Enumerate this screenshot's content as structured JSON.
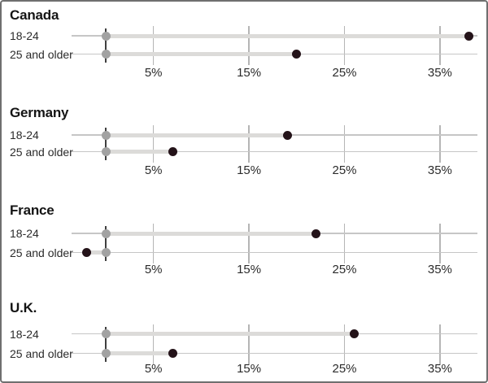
{
  "chart_data": {
    "type": "dumbbell",
    "description": "Four small-multiple lollipop/dumbbell panels by country; each panel compares two age groups, with a gray baseline dot at 0% connected by a light band to a dark dot at the value.",
    "unit": "%",
    "baseline_value": 0,
    "x_axis": {
      "tick_values": [
        5,
        15,
        25,
        35
      ],
      "tick_labels": [
        "5%",
        "15%",
        "25%",
        "35%"
      ],
      "range": [
        -3.6,
        39
      ],
      "gridlines": true
    },
    "group_labels": [
      "18-24",
      "25 and older"
    ],
    "panels": [
      {
        "title": "Canada",
        "rows": [
          {
            "label": "18-24",
            "baseline": 0,
            "value": 38
          },
          {
            "label": "25 and older",
            "baseline": 0,
            "value": 20
          }
        ]
      },
      {
        "title": "Germany",
        "rows": [
          {
            "label": "18-24",
            "baseline": 0,
            "value": 19
          },
          {
            "label": "25 and older",
            "baseline": 0,
            "value": 7
          }
        ]
      },
      {
        "title": "France",
        "rows": [
          {
            "label": "18-24",
            "baseline": 0,
            "value": 22
          },
          {
            "label": "25 and older",
            "baseline": 0,
            "value": -2
          }
        ]
      },
      {
        "title": "U.K.",
        "rows": [
          {
            "label": "18-24",
            "baseline": 0,
            "value": 26
          },
          {
            "label": "25 and older",
            "baseline": 0,
            "value": 7
          }
        ]
      }
    ],
    "legend": null
  },
  "colors": {
    "value_dot": "#241319",
    "baseline_dot": "#a2a2a2",
    "connector_band": "#dcdbd9",
    "row_line": "#c6c6c6",
    "gridline": "#b5b5b5",
    "zero_axis": "#3f3f3f",
    "title_text": "#141414",
    "label_text": "#2b2b2b",
    "tick_text": "#2b2b2b",
    "background": "#ffffff",
    "frame_border": "#6f6f6f"
  }
}
